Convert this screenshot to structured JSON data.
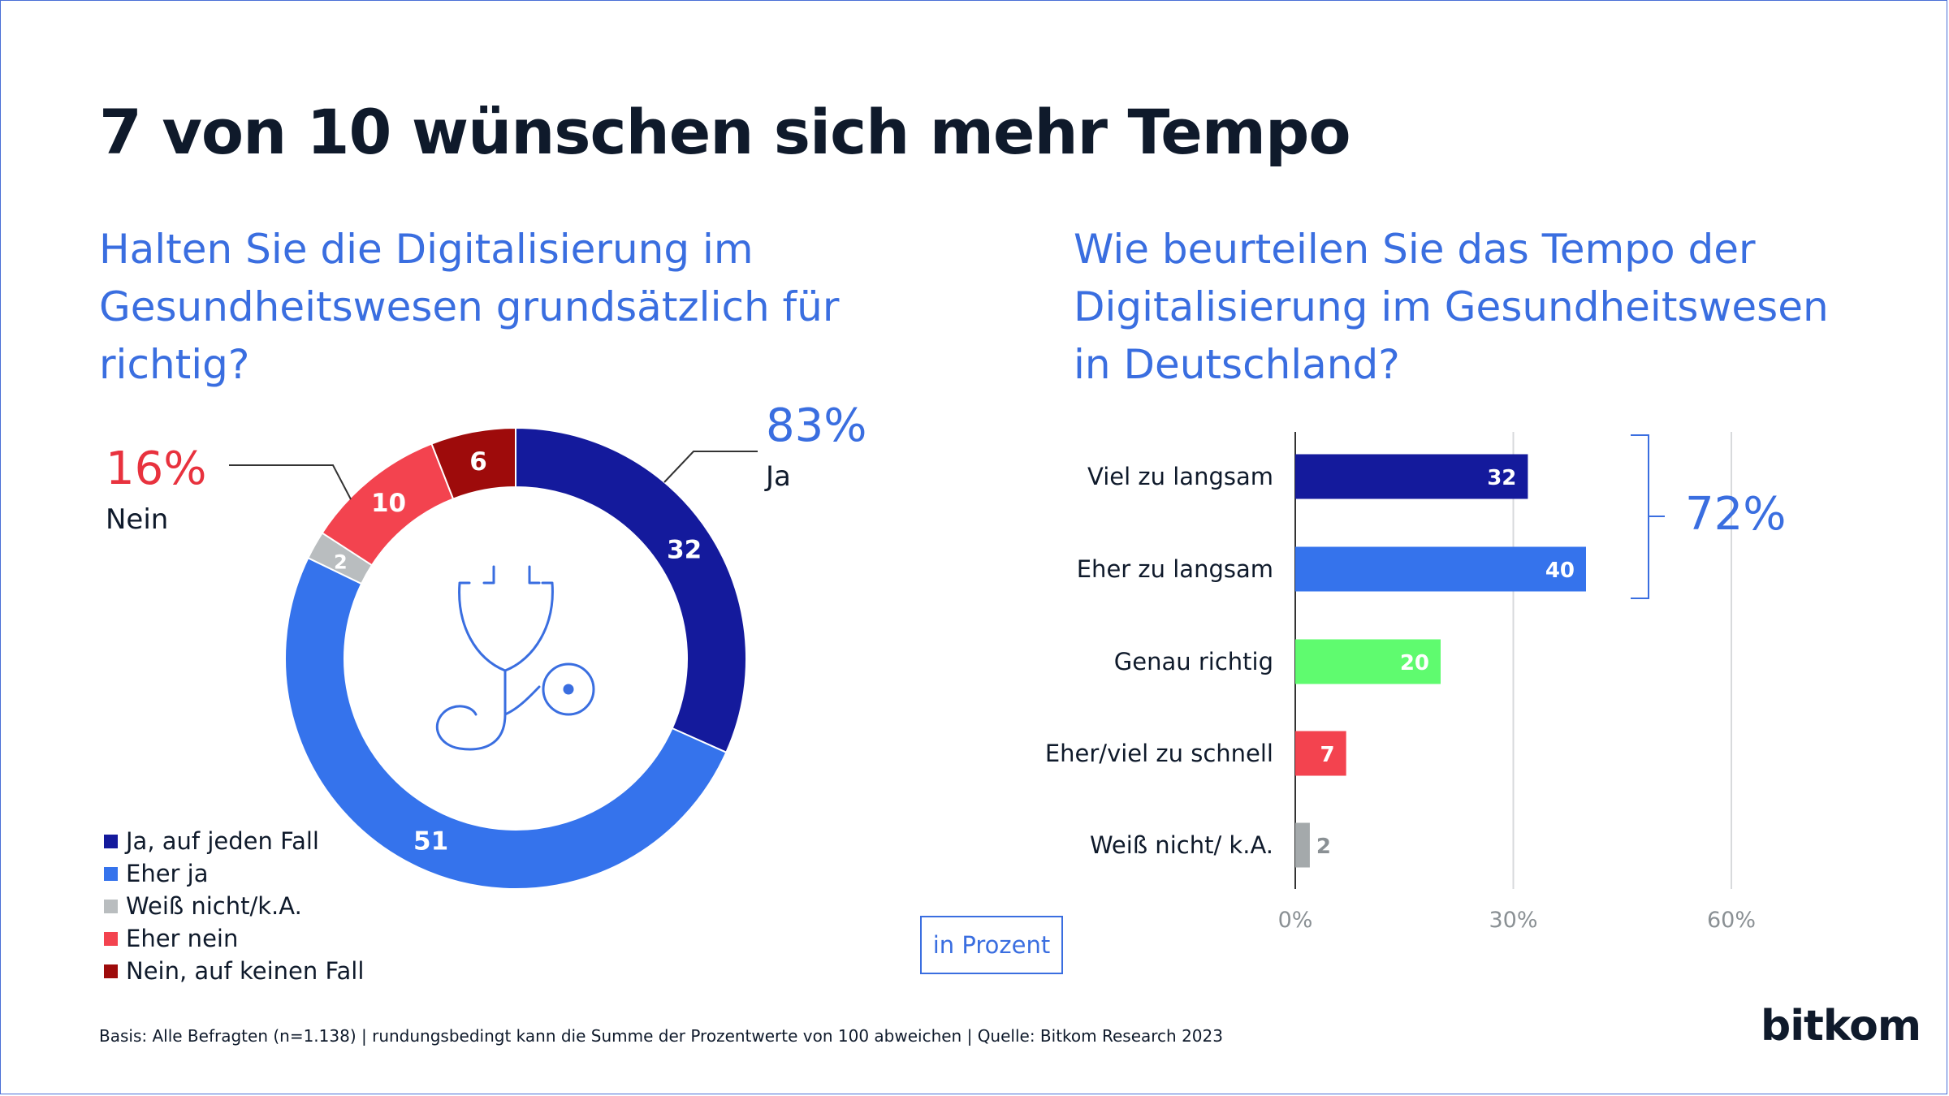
{
  "title": "7 von 10 wünschen sich mehr Tempo",
  "footer": "Basis: Alle Befragten (n=1.138) | rundungsbedingt kann die Summe der Prozentwerte von 100 abweichen | Quelle: Bitkom Research 2023",
  "logo": "bitkom",
  "unit_label": "in Prozent",
  "colors": {
    "dark_blue": "#141a9c",
    "blue": "#3573ec",
    "gray": "#b9bdbf",
    "red": "#f3434f",
    "dark_red": "#9e0b0b",
    "green": "#5ffb6f",
    "accent_text": "#3a6ee0",
    "alert_text": "#e8323e"
  },
  "chart_data": [
    {
      "type": "pie",
      "variant": "donut",
      "title": "Halten Sie die Digitalisierung im Gesundheitswesen grundsätzlich für richtig?",
      "center_icon": "stethoscope-icon",
      "slices": [
        {
          "label": "Ja, auf jeden Fall",
          "value": 32,
          "color": "#141a9c"
        },
        {
          "label": "Eher ja",
          "value": 51,
          "color": "#3573ec"
        },
        {
          "label": "Weiß nicht/k.A.",
          "value": 2,
          "color": "#b9bdbf"
        },
        {
          "label": "Eher nein",
          "value": 10,
          "color": "#f3434f"
        },
        {
          "label": "Nein, auf keinen Fall",
          "value": 6,
          "color": "#9e0b0b"
        }
      ],
      "callouts": [
        {
          "value": "83%",
          "label": "Ja"
        },
        {
          "value": "16%",
          "label": "Nein"
        }
      ],
      "legend_position": "bottom-left"
    },
    {
      "type": "bar",
      "orientation": "horizontal",
      "title": "Wie beurteilen Sie das Tempo der Digitalisierung im Gesundheitswesen in Deutschland?",
      "categories": [
        "Viel zu langsam",
        "Eher zu langsam",
        "Genau richtig",
        "Eher/viel zu schnell",
        "Weiß nicht/ k.A."
      ],
      "values": [
        32,
        40,
        20,
        7,
        2
      ],
      "colors": [
        "#141a9c",
        "#3573ec",
        "#5ffb6f",
        "#f3434f",
        "#a4a9ab"
      ],
      "xlim": [
        0,
        60
      ],
      "x_ticks": [
        "0%",
        "30%",
        "60%"
      ],
      "grid": true,
      "bracket": {
        "label": "72%",
        "covers": [
          "Viel zu langsam",
          "Eher zu langsam"
        ]
      }
    }
  ]
}
